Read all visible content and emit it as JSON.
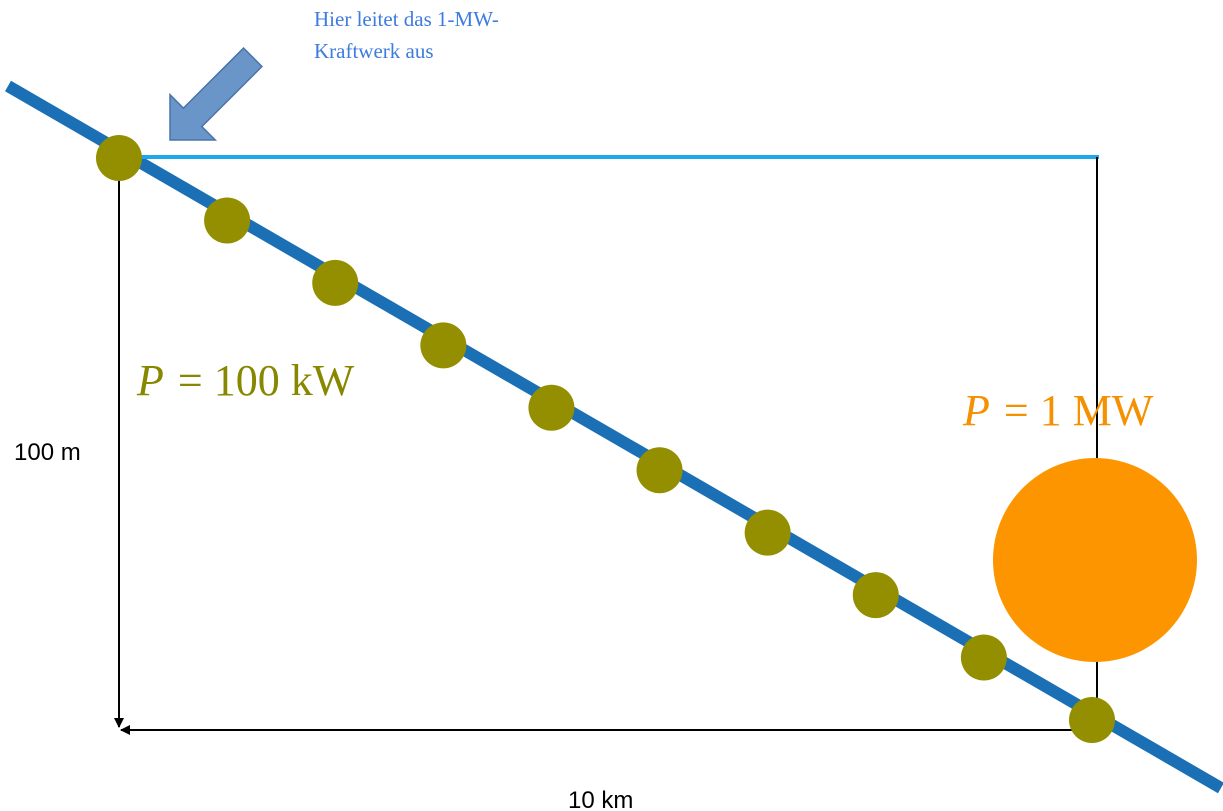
{
  "annotation": {
    "line1": "Hier leitet das 1-MW-",
    "line2": "Kraftwerk aus"
  },
  "labels": {
    "small_plant_power": "P = 100 kW",
    "small_plant_power_symbol": "P",
    "small_plant_power_value": "= 100 kW",
    "large_plant_power": "P = 1 MW",
    "large_plant_power_symbol": "P",
    "large_plant_power_value": "= 1 MW",
    "height": "100 m",
    "length": "10 km"
  },
  "colors": {
    "river": "#1a6fb5",
    "water_level": "#1ea7ea",
    "small_plant": "#948f00",
    "small_plant_text": "#878700",
    "large_plant": "#fd9500",
    "large_plant_text": "#f59000",
    "arrow_fill": "#6a95c9",
    "arrow_stroke": "#4a74a8",
    "annotation_text": "#3d7be0"
  },
  "icons": {
    "small_plant": "filled-circle",
    "large_plant": "filled-circle",
    "pointer": "block-arrow"
  },
  "small_plant_count": 10
}
